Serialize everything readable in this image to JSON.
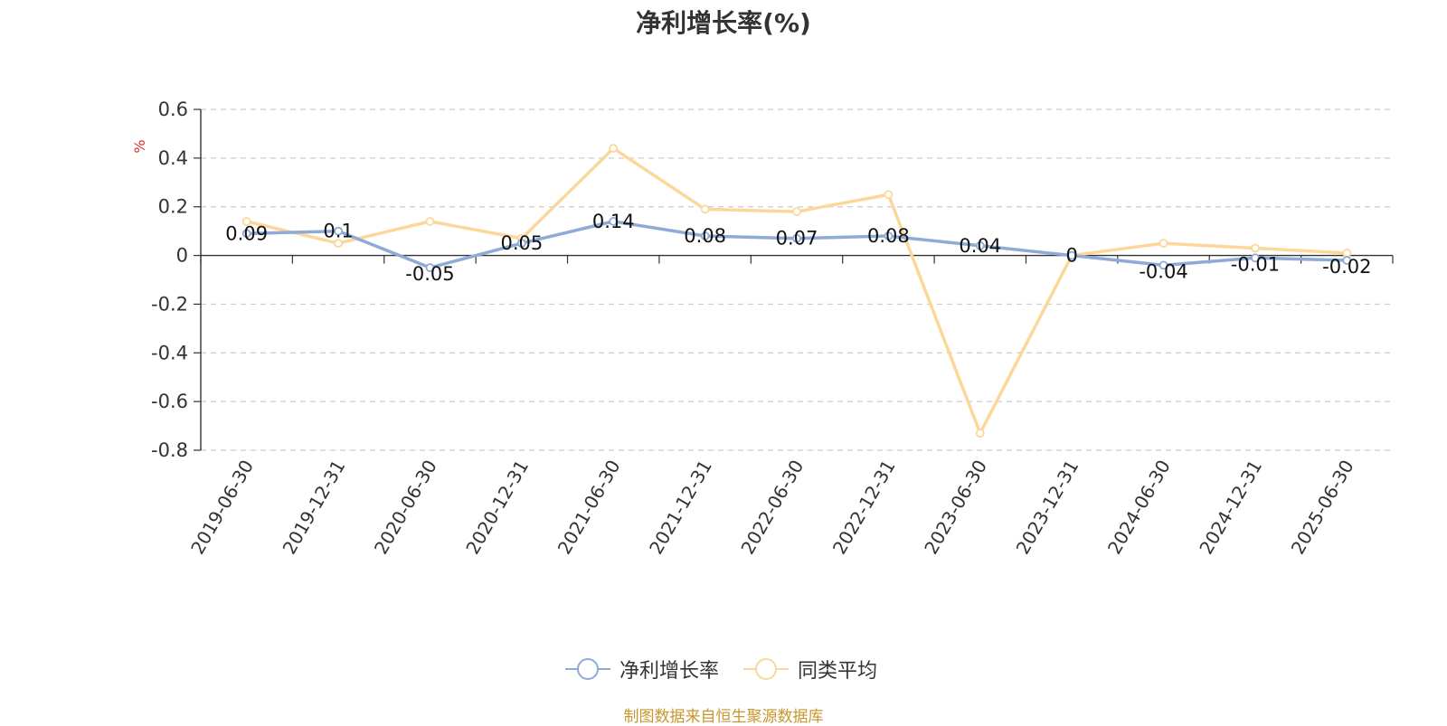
{
  "chart_data": {
    "type": "line",
    "title": "净利增长率(%)",
    "ylabel": "%",
    "xlabel": "",
    "ylim": [
      -0.8,
      0.6
    ],
    "yticks": [
      0.6,
      0.4,
      0.2,
      0,
      -0.2,
      -0.4,
      -0.6,
      -0.8
    ],
    "grid": true,
    "legend_position": "bottom",
    "categories": [
      "2019-06-30",
      "2019-12-31",
      "2020-06-30",
      "2020-12-31",
      "2021-06-30",
      "2021-12-31",
      "2022-06-30",
      "2022-12-31",
      "2023-06-30",
      "2023-12-31",
      "2024-06-30",
      "2024-12-31",
      "2025-06-30"
    ],
    "series": [
      {
        "name": "净利增长率",
        "color": "#8eaad6",
        "values": [
          0.09,
          0.1,
          -0.05,
          0.05,
          0.14,
          0.08,
          0.07,
          0.08,
          0.04,
          0,
          -0.04,
          -0.01,
          -0.02
        ],
        "labels": [
          "0.09",
          "0.1",
          "-0.05",
          "0.05",
          "0.14",
          "0.08",
          "0.07",
          "0.08",
          "0.04",
          "0",
          "-0.04",
          "-0.01",
          "-0.02"
        ]
      },
      {
        "name": "同类平均",
        "color": "#fbd89a",
        "values": [
          0.14,
          0.05,
          0.14,
          0.07,
          0.44,
          0.19,
          0.18,
          0.25,
          -0.73,
          0,
          0.05,
          0.03,
          0.01
        ]
      }
    ]
  },
  "source_note": "制图数据来自恒生聚源数据库"
}
